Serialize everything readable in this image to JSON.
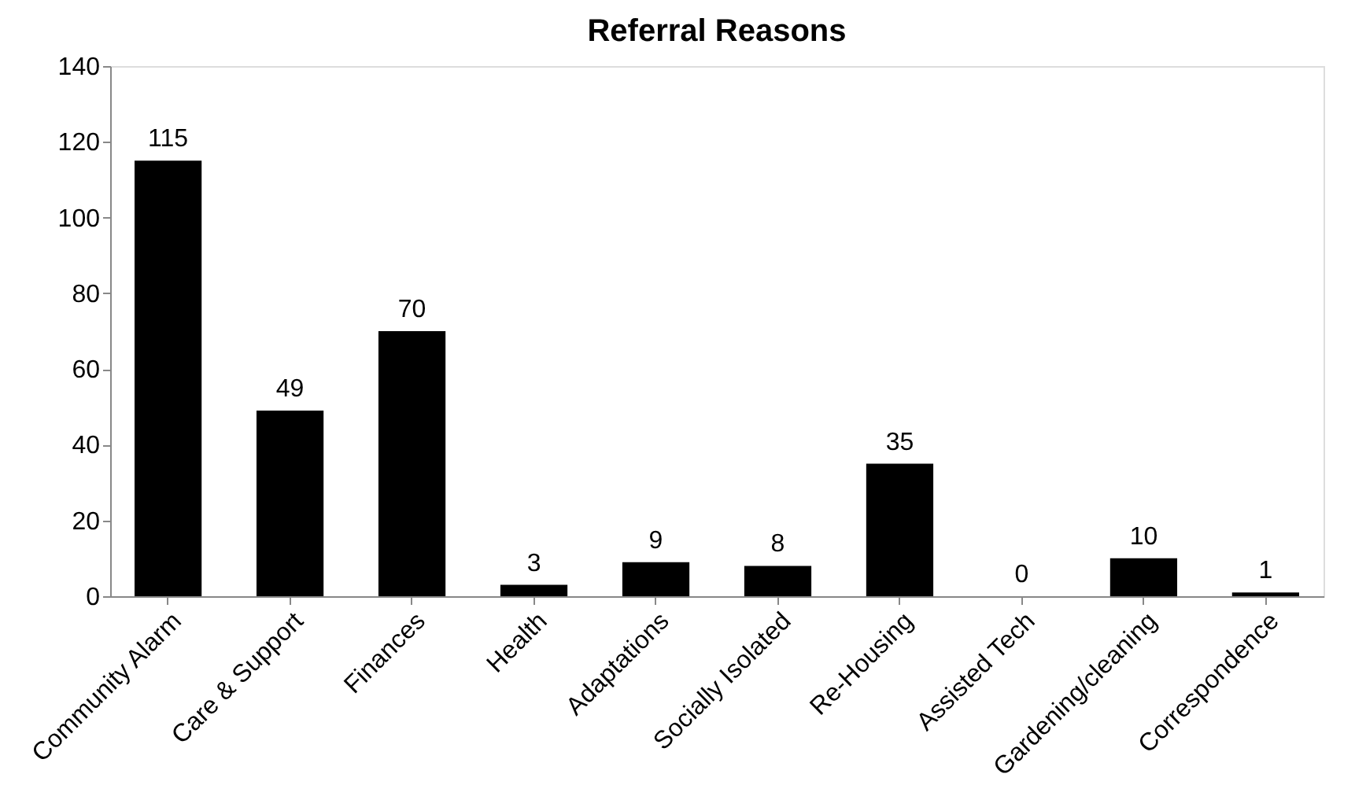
{
  "chart_data": {
    "type": "bar",
    "title": "Referral Reasons",
    "categories": [
      "Community Alarm",
      "Care & Support",
      "Finances",
      "Health",
      "Adaptations",
      "Socially Isolated",
      "Re-Housing",
      "Assisted Tech",
      "Gardening/cleaning",
      "Correspondence"
    ],
    "values": [
      115,
      49,
      70,
      3,
      9,
      8,
      35,
      0,
      10,
      1
    ],
    "color": "#000000",
    "ylim": [
      0,
      140
    ],
    "yticks": [
      0,
      20,
      40,
      60,
      80,
      100,
      120,
      140
    ],
    "grid": false,
    "data_labels": true
  }
}
